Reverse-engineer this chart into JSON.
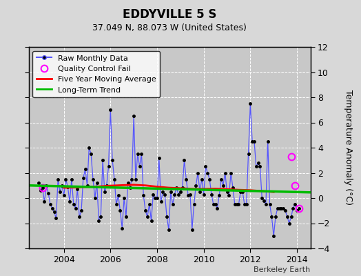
{
  "title": "EDDYVILLE 5 S",
  "subtitle": "37.049 N, 88.073 W (United States)",
  "ylabel": "Temperature Anomaly (°C)",
  "credit": "Berkeley Earth",
  "ylim": [
    -4,
    12
  ],
  "yticks": [
    -4,
    -2,
    0,
    2,
    4,
    6,
    8,
    10,
    12
  ],
  "xlim": [
    2002.5,
    2014.58
  ],
  "xticks": [
    2004,
    2006,
    2008,
    2010,
    2012,
    2014
  ],
  "bg_color": "#d8d8d8",
  "plot_bg_color": "#c8c8c8",
  "raw_color": "#5555ff",
  "dot_color": "#000000",
  "ma_color": "#ff0000",
  "trend_color": "#00bb00",
  "qc_color": "#ff00ff",
  "raw_data": [
    [
      2002.917,
      1.2
    ],
    [
      2003.0,
      0.6
    ],
    [
      2003.083,
      0.8
    ],
    [
      2003.167,
      -0.3
    ],
    [
      2003.25,
      1.0
    ],
    [
      2003.333,
      0.4
    ],
    [
      2003.417,
      -0.5
    ],
    [
      2003.5,
      -0.8
    ],
    [
      2003.583,
      -1.1
    ],
    [
      2003.667,
      -1.6
    ],
    [
      2003.75,
      1.5
    ],
    [
      2003.833,
      0.5
    ],
    [
      2003.917,
      1.0
    ],
    [
      2004.0,
      0.2
    ],
    [
      2004.083,
      1.5
    ],
    [
      2004.167,
      0.9
    ],
    [
      2004.25,
      -0.3
    ],
    [
      2004.333,
      1.5
    ],
    [
      2004.417,
      -0.5
    ],
    [
      2004.5,
      -0.8
    ],
    [
      2004.583,
      0.7
    ],
    [
      2004.667,
      -1.5
    ],
    [
      2004.75,
      -1.0
    ],
    [
      2004.833,
      1.6
    ],
    [
      2004.917,
      2.3
    ],
    [
      2005.0,
      1.0
    ],
    [
      2005.083,
      4.0
    ],
    [
      2005.167,
      3.5
    ],
    [
      2005.25,
      1.5
    ],
    [
      2005.333,
      0.0
    ],
    [
      2005.417,
      1.2
    ],
    [
      2005.5,
      -1.8
    ],
    [
      2005.583,
      -1.5
    ],
    [
      2005.667,
      3.0
    ],
    [
      2005.75,
      0.5
    ],
    [
      2005.833,
      1.0
    ],
    [
      2005.917,
      2.5
    ],
    [
      2006.0,
      7.0
    ],
    [
      2006.083,
      3.0
    ],
    [
      2006.167,
      1.5
    ],
    [
      2006.25,
      -0.5
    ],
    [
      2006.333,
      0.2
    ],
    [
      2006.417,
      -1.0
    ],
    [
      2006.5,
      -2.4
    ],
    [
      2006.583,
      0.0
    ],
    [
      2006.667,
      -1.5
    ],
    [
      2006.75,
      1.2
    ],
    [
      2006.833,
      0.8
    ],
    [
      2006.917,
      1.5
    ],
    [
      2007.0,
      6.5
    ],
    [
      2007.083,
      1.5
    ],
    [
      2007.167,
      3.5
    ],
    [
      2007.25,
      2.5
    ],
    [
      2007.333,
      3.5
    ],
    [
      2007.417,
      0.2
    ],
    [
      2007.5,
      -1.0
    ],
    [
      2007.583,
      -1.5
    ],
    [
      2007.667,
      -0.5
    ],
    [
      2007.75,
      -1.8
    ],
    [
      2007.833,
      0.3
    ],
    [
      2007.917,
      0.0
    ],
    [
      2008.0,
      0.0
    ],
    [
      2008.083,
      3.2
    ],
    [
      2008.167,
      -0.3
    ],
    [
      2008.25,
      0.5
    ],
    [
      2008.333,
      0.3
    ],
    [
      2008.417,
      -1.5
    ],
    [
      2008.5,
      -2.5
    ],
    [
      2008.583,
      0.5
    ],
    [
      2008.667,
      -0.5
    ],
    [
      2008.75,
      0.3
    ],
    [
      2008.833,
      0.8
    ],
    [
      2008.917,
      0.3
    ],
    [
      2009.0,
      0.5
    ],
    [
      2009.083,
      0.8
    ],
    [
      2009.167,
      3.0
    ],
    [
      2009.25,
      1.5
    ],
    [
      2009.333,
      0.2
    ],
    [
      2009.417,
      0.3
    ],
    [
      2009.5,
      -2.5
    ],
    [
      2009.583,
      -0.5
    ],
    [
      2009.667,
      1.0
    ],
    [
      2009.75,
      2.0
    ],
    [
      2009.833,
      0.5
    ],
    [
      2009.917,
      1.5
    ],
    [
      2010.0,
      0.3
    ],
    [
      2010.083,
      2.5
    ],
    [
      2010.167,
      2.0
    ],
    [
      2010.25,
      1.5
    ],
    [
      2010.333,
      0.3
    ],
    [
      2010.417,
      -0.5
    ],
    [
      2010.5,
      -0.5
    ],
    [
      2010.583,
      -0.8
    ],
    [
      2010.667,
      0.2
    ],
    [
      2010.75,
      1.5
    ],
    [
      2010.833,
      1.0
    ],
    [
      2010.917,
      2.0
    ],
    [
      2011.0,
      0.5
    ],
    [
      2011.083,
      0.2
    ],
    [
      2011.167,
      2.0
    ],
    [
      2011.25,
      0.8
    ],
    [
      2011.333,
      -0.5
    ],
    [
      2011.417,
      -0.5
    ],
    [
      2011.5,
      -0.5
    ],
    [
      2011.583,
      0.5
    ],
    [
      2011.667,
      0.5
    ],
    [
      2011.75,
      -0.5
    ],
    [
      2011.833,
      -0.5
    ],
    [
      2011.917,
      3.5
    ],
    [
      2012.0,
      7.5
    ],
    [
      2012.083,
      4.5
    ],
    [
      2012.167,
      4.5
    ],
    [
      2012.25,
      2.5
    ],
    [
      2012.333,
      2.8
    ],
    [
      2012.417,
      2.5
    ],
    [
      2012.5,
      0.0
    ],
    [
      2012.583,
      -0.2
    ],
    [
      2012.667,
      -0.5
    ],
    [
      2012.75,
      4.5
    ],
    [
      2012.833,
      -0.5
    ],
    [
      2012.917,
      -1.5
    ],
    [
      2013.0,
      -3.0
    ],
    [
      2013.083,
      -1.5
    ],
    [
      2013.167,
      -0.8
    ],
    [
      2013.25,
      -0.8
    ],
    [
      2013.333,
      -0.8
    ],
    [
      2013.417,
      -0.8
    ],
    [
      2013.5,
      -1.0
    ],
    [
      2013.583,
      -1.5
    ],
    [
      2013.667,
      -2.0
    ],
    [
      2013.75,
      -1.5
    ],
    [
      2013.833,
      -0.8
    ],
    [
      2013.917,
      -0.5
    ],
    [
      2014.0,
      -1.0
    ],
    [
      2014.083,
      -0.8
    ]
  ],
  "qc_points": [
    [
      2003.083,
      0.8
    ],
    [
      2013.75,
      3.3
    ],
    [
      2013.917,
      1.0
    ],
    [
      2014.083,
      -0.8
    ]
  ],
  "moving_avg": [
    [
      2004.0,
      0.82
    ],
    [
      2004.5,
      0.84
    ],
    [
      2005.0,
      0.88
    ],
    [
      2005.5,
      0.92
    ],
    [
      2006.0,
      0.98
    ],
    [
      2006.5,
      1.02
    ],
    [
      2007.0,
      1.05
    ],
    [
      2007.5,
      1.0
    ],
    [
      2008.0,
      0.9
    ],
    [
      2008.5,
      0.82
    ],
    [
      2009.0,
      0.78
    ],
    [
      2009.5,
      0.73
    ],
    [
      2010.0,
      0.72
    ],
    [
      2010.5,
      0.74
    ],
    [
      2011.0,
      0.7
    ],
    [
      2011.5,
      0.65
    ],
    [
      2012.0,
      0.62
    ],
    [
      2012.5,
      0.55
    ],
    [
      2013.0,
      0.48
    ]
  ],
  "trend_x": [
    2002.5,
    2014.58
  ],
  "trend_y": [
    1.0,
    0.45
  ]
}
